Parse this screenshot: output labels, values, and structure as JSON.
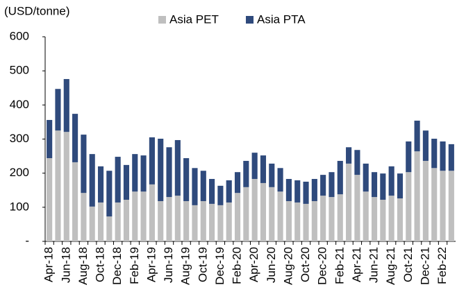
{
  "chart_data": {
    "type": "stacked_bar",
    "y_label": "(USD/tonne)",
    "categories": [
      "Apr-18",
      null,
      "Jun-18",
      null,
      "Aug-18",
      null,
      "Oct-18",
      null,
      "Dec-18",
      null,
      "Feb-19",
      null,
      "Apr-19",
      null,
      "Jun-19",
      null,
      "Aug-19",
      null,
      "Oct-19",
      null,
      "Dec-19",
      null,
      "Feb-20",
      null,
      "Apr-20",
      null,
      "Jun-20",
      null,
      "Aug-20",
      null,
      "Oct-20",
      null,
      "Dec-20",
      null,
      "Feb-21",
      null,
      "Apr-21",
      null,
      "Jun-21",
      null,
      "Aug-21",
      null,
      "Oct-21",
      null,
      "Dec-21",
      null,
      "Feb-22",
      null
    ],
    "series": [
      {
        "name": "Asia PET",
        "color": "#bfbfbf",
        "values": [
          244,
          325,
          321,
          232,
          142,
          102,
          114,
          73,
          114,
          122,
          146,
          146,
          167,
          118,
          130,
          134,
          118,
          106,
          118,
          110,
          106,
          114,
          142,
          159,
          183,
          171,
          159,
          146,
          118,
          114,
          110,
          118,
          134,
          130,
          138,
          228,
          195,
          146,
          130,
          122,
          134,
          126,
          203,
          264,
          236,
          215,
          207,
          207
        ]
      },
      {
        "name": "Asia PTA",
        "color": "#2f4a7c",
        "values": [
          112,
          122,
          155,
          142,
          171,
          154,
          106,
          134,
          134,
          102,
          110,
          106,
          138,
          183,
          146,
          163,
          126,
          109,
          89,
          73,
          57,
          65,
          61,
          77,
          77,
          81,
          69,
          69,
          65,
          65,
          65,
          65,
          61,
          73,
          98,
          48,
          73,
          82,
          73,
          77,
          86,
          73,
          90,
          90,
          89,
          86,
          86,
          78
        ]
      }
    ],
    "ylim": [
      0,
      600
    ],
    "yticks": [
      {
        "value": 0,
        "label": "-"
      },
      100,
      200,
      300,
      400,
      500,
      600
    ],
    "grid": false,
    "legend": "top"
  }
}
